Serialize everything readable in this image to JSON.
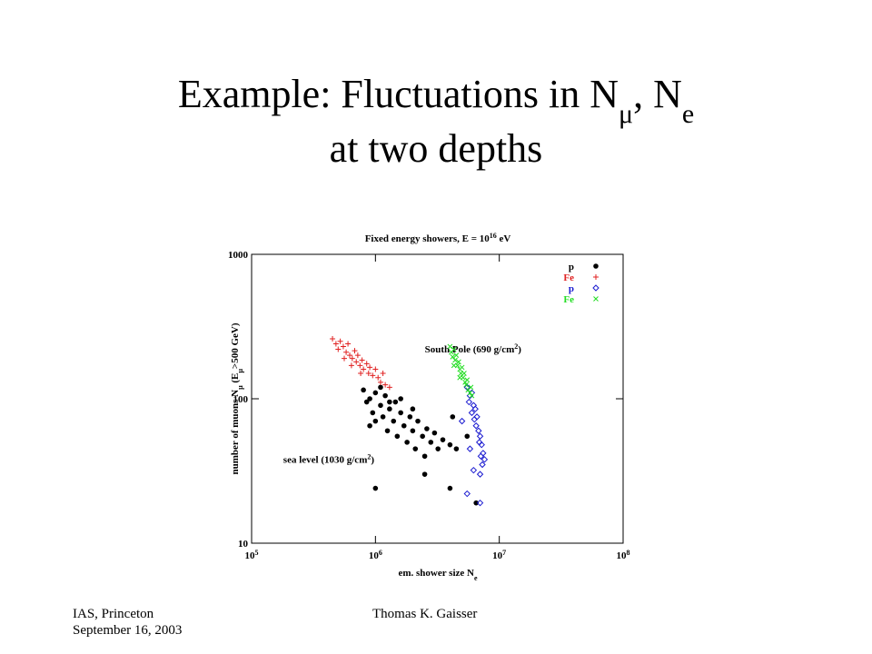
{
  "slide": {
    "title_line1": [
      "Example: Fluctuations in N",
      "μ",
      ", N",
      "e"
    ],
    "title_line2": "at two depths",
    "footer_left": [
      "IAS, Princeton",
      "September 16, 2003"
    ],
    "footer_center": "Thomas K. Gaisser"
  },
  "chart_data": {
    "type": "scatter",
    "title": [
      "Fixed energy showers, E = 10",
      "16",
      " eV"
    ],
    "x_label": [
      "em. shower size N",
      "e"
    ],
    "y_label": [
      "number of muons N",
      "μ",
      " (E",
      "μ",
      ">500 GeV)"
    ],
    "xscale": "log",
    "yscale": "log",
    "xlim": [
      100000,
      100000000
    ],
    "ylim": [
      10,
      1000
    ],
    "xticks": [
      {
        "value": 100000,
        "label": "10",
        "exponent": "5"
      },
      {
        "value": 1000000,
        "label": "10",
        "exponent": "6"
      },
      {
        "value": 10000000,
        "label": "10",
        "exponent": "7"
      },
      {
        "value": 100000000,
        "label": "10",
        "exponent": "8"
      }
    ],
    "yticks": [
      10,
      100,
      1000
    ],
    "legend": "upper right",
    "annotations": [
      {
        "text": [
          "South Pole (690 g/cm",
          "2",
          ")"
        ],
        "x": 2500000,
        "y": 210
      },
      {
        "text": [
          "sea level (1030 g/cm",
          "2",
          ")"
        ],
        "x": 180000,
        "y": 36
      }
    ],
    "series": [
      {
        "name": "p",
        "color": "#000000",
        "marker": "dot",
        "x": [
          800000,
          850000,
          900000,
          950000,
          1000000,
          1000000,
          1100000,
          1150000,
          1200000,
          1250000,
          1300000,
          1400000,
          1450000,
          1500000,
          1600000,
          1700000,
          1800000,
          1900000,
          2000000,
          2100000,
          2200000,
          2400000,
          2500000,
          2600000,
          2800000,
          3000000,
          3200000,
          3500000,
          4000000,
          4500000,
          1100000,
          1300000,
          1600000,
          900000,
          2000000,
          5500000,
          4200000,
          1000000,
          2500000,
          4000000,
          6500000
        ],
        "values": [
          115,
          95,
          100,
          80,
          110,
          70,
          90,
          75,
          105,
          60,
          85,
          70,
          95,
          55,
          80,
          65,
          50,
          75,
          60,
          45,
          70,
          55,
          40,
          62,
          50,
          58,
          45,
          52,
          48,
          45,
          120,
          95,
          100,
          65,
          85,
          55,
          75,
          24,
          30,
          24,
          19
        ]
      },
      {
        "name": "Fe",
        "color": "#e02020",
        "marker": "plus",
        "x": [
          450000,
          480000,
          520000,
          500000,
          550000,
          580000,
          600000,
          620000,
          650000,
          680000,
          700000,
          720000,
          750000,
          780000,
          800000,
          850000,
          880000,
          900000,
          950000,
          1000000,
          1050000,
          1100000,
          1150000,
          1200000,
          1300000,
          560000,
          640000,
          760000
        ],
        "values": [
          260,
          240,
          250,
          220,
          230,
          210,
          240,
          200,
          190,
          215,
          180,
          200,
          170,
          185,
          160,
          175,
          150,
          165,
          145,
          160,
          140,
          130,
          150,
          125,
          120,
          190,
          170,
          150
        ]
      },
      {
        "name": "p",
        "color": "#1a1ad0",
        "marker": "diamond",
        "x": [
          5500000,
          5800000,
          6000000,
          5700000,
          6200000,
          6000000,
          6400000,
          6300000,
          6600000,
          6500000,
          6800000,
          7000000,
          6900000,
          7200000,
          7400000,
          7100000,
          7600000,
          7300000,
          6200000,
          7000000,
          5000000,
          5800000,
          5500000,
          7000000
        ],
        "values": [
          120,
          105,
          110,
          95,
          90,
          80,
          85,
          72,
          75,
          65,
          60,
          55,
          50,
          48,
          42,
          40,
          38,
          35,
          32,
          30,
          70,
          45,
          22,
          19
        ]
      },
      {
        "name": "Fe",
        "color": "#22dd22",
        "marker": "cross",
        "x": [
          4000000,
          4100000,
          4300000,
          4200000,
          4400000,
          4500000,
          4600000,
          4700000,
          4800000,
          4900000,
          5000000,
          5100000,
          5200000,
          5300000,
          5400000,
          5500000,
          5600000,
          5800000,
          5900000,
          6000000,
          4300000,
          4800000
        ],
        "values": [
          230,
          210,
          220,
          195,
          185,
          200,
          170,
          180,
          160,
          150,
          165,
          140,
          150,
          130,
          125,
          135,
          115,
          110,
          120,
          105,
          170,
          140
        ]
      }
    ]
  }
}
